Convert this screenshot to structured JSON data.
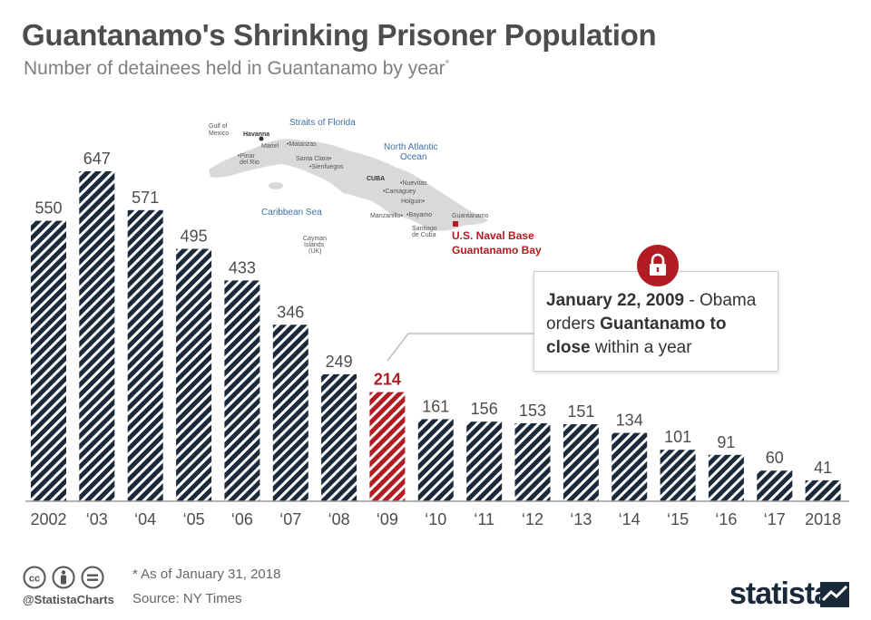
{
  "title": "Guantanamo's Shrinking Prisoner Population",
  "subtitle": "Number of detainees held in Guantanamo by year",
  "subtitle_marker": "*",
  "chart_data": {
    "type": "bar",
    "categories": [
      "2002",
      "‘03",
      "‘04",
      "‘05",
      "‘06",
      "‘07",
      "‘08",
      "‘09",
      "‘10",
      "‘11",
      "‘12",
      "‘13",
      "‘14",
      "‘15",
      "‘16",
      "‘17",
      "2018"
    ],
    "values": [
      550,
      647,
      571,
      495,
      433,
      346,
      249,
      214,
      161,
      156,
      153,
      151,
      134,
      101,
      91,
      60,
      41
    ],
    "highlight_index": 7,
    "ylim": [
      0,
      700
    ],
    "grid": false,
    "colors": {
      "bar": "#1b2a3a",
      "highlight": "#b01c22",
      "label": "#4d4d4d"
    }
  },
  "map": {
    "labels": {
      "gulf": "Gulf of Mexico",
      "gulf_l1": "Gulf of",
      "gulf_l2": "Mexico",
      "straits": "Straits of Florida",
      "havanna": "Havanna",
      "matanzas": "•Matanzas",
      "mariel": "Mariel",
      "pinar": "•Pinar del Rio",
      "pinar_l1": "•Pinar",
      "pinar_l2": "del Rio",
      "santa_clara": "Santa Clara•",
      "sienfuegos": "•Sienfuegos",
      "atlantic": "North Atlantic Ocean",
      "atlantic_l1": "North Atlantic",
      "atlantic_l2": "Ocean",
      "cuba": "CUBA",
      "nuevitas": "•Nuevitas",
      "camaguey": "•Camaguey",
      "holguin": "Holguin•",
      "bayamo": "•Bayamo",
      "manzanillo": "Manzanillo•",
      "guantanamo": "Guantanamo",
      "santiago": "Santiago de Cuba",
      "santiago_l1": "Santiago",
      "santiago_l2": "de Cuba",
      "caribbean": "Caribbean Sea",
      "cayman": "Cayman Islands (UK)",
      "cayman_l1": "Cayman",
      "cayman_l2": "Islands",
      "cayman_l3": "(UK)",
      "naval_base": "U.S. Naval Base Guantanamo Bay",
      "naval_l1": "U.S. Naval Base",
      "naval_l2": "Guantanamo Bay"
    },
    "colors": {
      "land": "#d9d9d9",
      "water_text": "#3f6fa5",
      "marker": "#b01c22"
    }
  },
  "callout": {
    "date": "January 22, 2009",
    "text_1": " - Obama orders ",
    "bold_1": "Guantanamo to close",
    "text_2": " within a year",
    "icon": "lock-icon"
  },
  "footer": {
    "handle": "@StatistaCharts",
    "footnote": "* As of January 31, 2018",
    "source": "Source: NY Times",
    "brand": "statista",
    "icons": [
      "cc-icon",
      "by-person-icon",
      "nd-equals-icon"
    ]
  }
}
